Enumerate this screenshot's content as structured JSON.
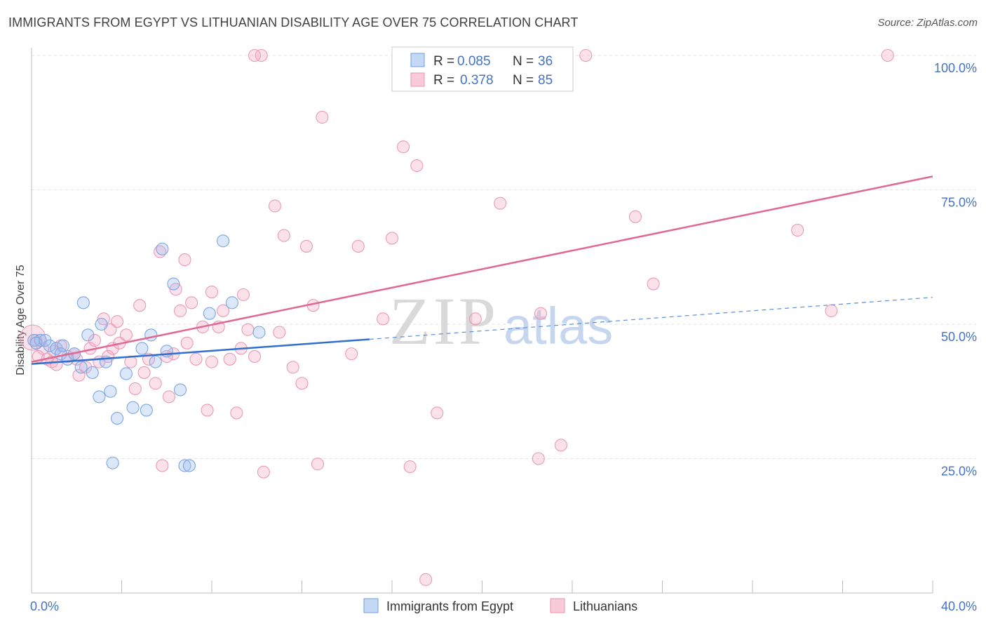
{
  "title": "IMMIGRANTS FROM EGYPT VS LITHUANIAN DISABILITY AGE OVER 75 CORRELATION CHART",
  "source": "Source: ZipAtlas.com",
  "colors": {
    "egypt": "#4a86d8",
    "lithuanian": "#e06891",
    "tick": "#4472c4",
    "grid": "#dddddd"
  },
  "legend": {
    "rows": [
      {
        "r_label": "R =",
        "r_value": "0.085",
        "n_label": "N =",
        "n_value": "36"
      },
      {
        "r_label": "R =",
        "r_value": "0.378",
        "n_label": "N =",
        "n_value": "85"
      }
    ]
  },
  "watermark": {
    "zip": "ZIP",
    "atlas": "atlas"
  },
  "chart_data": {
    "type": "scatter",
    "title": "IMMIGRANTS FROM EGYPT VS LITHUANIAN DISABILITY AGE OVER 75 CORRELATION CHART",
    "xlabel": "",
    "ylabel": "Disability Age Over 75",
    "xlim": [
      0,
      40
    ],
    "ylim": [
      0,
      102
    ],
    "x_tick_labels": [
      {
        "value": 0,
        "label": "0.0%"
      },
      {
        "value": 40,
        "label": "40.0%"
      }
    ],
    "y_tick_labels": [
      {
        "value": 25,
        "label": "25.0%"
      },
      {
        "value": 50,
        "label": "50.0%"
      },
      {
        "value": 75,
        "label": "75.0%"
      },
      {
        "value": 100,
        "label": "100.0%"
      }
    ],
    "grid": true,
    "legend_position": "top-center",
    "series": [
      {
        "name": "Immigrants from Egypt",
        "color": "#4a86d8",
        "trend": {
          "x_start": 0,
          "y_start": 42.6,
          "x_solid_end": 15,
          "y_solid_end": 47.2,
          "x_end": 40,
          "y_end": 55
        },
        "points": [
          [
            0.1,
            47.0
          ],
          [
            0.4,
            47.0
          ],
          [
            0.8,
            46.0
          ],
          [
            1.1,
            45.5
          ],
          [
            1.4,
            46.0
          ],
          [
            1.3,
            44.5
          ],
          [
            1.6,
            43.5
          ],
          [
            1.9,
            44.5
          ],
          [
            2.2,
            42.0
          ],
          [
            2.3,
            54.0
          ],
          [
            2.5,
            48.0
          ],
          [
            2.7,
            41.0
          ],
          [
            3.0,
            36.5
          ],
          [
            3.1,
            50.0
          ],
          [
            3.3,
            43.0
          ],
          [
            3.5,
            37.5
          ],
          [
            3.6,
            24.2
          ],
          [
            3.8,
            32.5
          ],
          [
            4.2,
            40.8
          ],
          [
            4.5,
            34.5
          ],
          [
            4.9,
            45.5
          ],
          [
            5.1,
            34.0
          ],
          [
            5.3,
            48.0
          ],
          [
            5.5,
            43.0
          ],
          [
            5.8,
            64.0
          ],
          [
            6.0,
            45.0
          ],
          [
            6.3,
            57.5
          ],
          [
            6.6,
            37.8
          ],
          [
            6.8,
            23.7
          ],
          [
            7.0,
            23.7
          ],
          [
            7.9,
            52.0
          ],
          [
            8.5,
            65.5
          ],
          [
            8.9,
            54.0
          ],
          [
            10.1,
            48.5
          ],
          [
            0.2,
            46.5
          ],
          [
            0.6,
            47.0
          ]
        ]
      },
      {
        "name": "Lithuanians",
        "color": "#e06891",
        "trend": {
          "x_start": 0,
          "y_start": 43,
          "x_end": 40,
          "y_end": 77.5
        },
        "points": [
          [
            0.2,
            47.0
          ],
          [
            0.5,
            45.5
          ],
          [
            0.7,
            43.5
          ],
          [
            0.9,
            43.0
          ],
          [
            1.1,
            42.5
          ],
          [
            1.3,
            46.0
          ],
          [
            1.6,
            44.0
          ],
          [
            1.9,
            44.5
          ],
          [
            2.1,
            40.5
          ],
          [
            2.4,
            42.0
          ],
          [
            2.6,
            45.5
          ],
          [
            2.8,
            47.0
          ],
          [
            3.0,
            43.0
          ],
          [
            3.2,
            51.0
          ],
          [
            3.4,
            44.0
          ],
          [
            3.6,
            45.5
          ],
          [
            3.8,
            50.5
          ],
          [
            3.9,
            46.5
          ],
          [
            4.2,
            48.0
          ],
          [
            4.4,
            43.0
          ],
          [
            4.6,
            38.0
          ],
          [
            4.8,
            53.5
          ],
          [
            5.0,
            41.0
          ],
          [
            5.2,
            43.5
          ],
          [
            5.5,
            39.0
          ],
          [
            5.7,
            63.5
          ],
          [
            5.8,
            23.7
          ],
          [
            6.1,
            36.5
          ],
          [
            6.3,
            44.5
          ],
          [
            6.4,
            56.5
          ],
          [
            6.6,
            52.5
          ],
          [
            6.8,
            62.0
          ],
          [
            6.9,
            46.5
          ],
          [
            7.1,
            54.0
          ],
          [
            7.3,
            43.5
          ],
          [
            7.6,
            49.5
          ],
          [
            7.8,
            34.0
          ],
          [
            8.0,
            56.0
          ],
          [
            8.3,
            49.5
          ],
          [
            8.5,
            52.5
          ],
          [
            8.8,
            43.5
          ],
          [
            9.1,
            33.5
          ],
          [
            9.3,
            45.5
          ],
          [
            9.4,
            55.5
          ],
          [
            9.6,
            49.0
          ],
          [
            9.9,
            44.0
          ],
          [
            10.2,
            100.0
          ],
          [
            10.3,
            22.5
          ],
          [
            10.8,
            72.0
          ],
          [
            11.2,
            66.5
          ],
          [
            11.6,
            42.0
          ],
          [
            12.0,
            39.0
          ],
          [
            12.2,
            64.5
          ],
          [
            12.5,
            53.5
          ],
          [
            12.7,
            24.0
          ],
          [
            12.9,
            88.5
          ],
          [
            14.2,
            44.5
          ],
          [
            14.5,
            64.5
          ],
          [
            15.6,
            51.0
          ],
          [
            16.0,
            66.0
          ],
          [
            16.5,
            83.0
          ],
          [
            16.8,
            23.5
          ],
          [
            17.1,
            79.5
          ],
          [
            17.5,
            2.5
          ],
          [
            18.0,
            33.5
          ],
          [
            19.7,
            51.0
          ],
          [
            20.8,
            72.5
          ],
          [
            22.0,
            100.0
          ],
          [
            22.5,
            25.0
          ],
          [
            22.6,
            52.0
          ],
          [
            23.5,
            27.5
          ],
          [
            24.6,
            100.0
          ],
          [
            26.8,
            70.0
          ],
          [
            27.6,
            57.5
          ],
          [
            34.0,
            67.5
          ],
          [
            35.5,
            52.5
          ],
          [
            38.0,
            100.0
          ],
          [
            9.9,
            100.0
          ],
          [
            0.3,
            44.0
          ],
          [
            1.0,
            45.0
          ],
          [
            2.0,
            43.5
          ],
          [
            3.5,
            49.0
          ],
          [
            6.0,
            44.0
          ],
          [
            8.0,
            43.0
          ],
          [
            11.0,
            48.5
          ]
        ]
      }
    ]
  },
  "bottom_legend": [
    {
      "label": "Immigrants from Egypt"
    },
    {
      "label": "Lithuanians"
    }
  ]
}
